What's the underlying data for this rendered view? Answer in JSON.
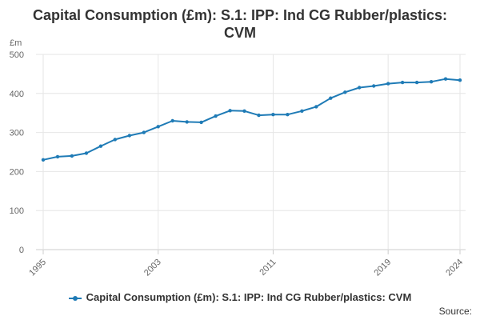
{
  "chart_data": {
    "type": "line",
    "title": "Capital Consumption (£m): S.1: IPP: Ind CG Rubber/plastics: CVM",
    "title_lines": [
      "Capital Consumption (£m): S.1: IPP: Ind CG Rubber/plastics:",
      "CVM"
    ],
    "ylabel": "£m",
    "xlabel": "",
    "ylim": [
      0,
      500
    ],
    "yticks": [
      0,
      100,
      200,
      300,
      400,
      500
    ],
    "xlim": [
      1995,
      2024
    ],
    "xticks": [
      "1995",
      "2003",
      "2011",
      "2019",
      "2024"
    ],
    "grid": true,
    "legend_position": "bottom",
    "series": [
      {
        "name": "Capital Consumption (£m): S.1: IPP: Ind CG Rubber/plastics: CVM",
        "color": "#1f7bb6",
        "x": [
          1995,
          1996,
          1997,
          1998,
          1999,
          2000,
          2001,
          2002,
          2003,
          2004,
          2005,
          2006,
          2007,
          2008,
          2009,
          2010,
          2011,
          2012,
          2013,
          2014,
          2015,
          2016,
          2017,
          2018,
          2019,
          2020,
          2021,
          2022,
          2023,
          2024
        ],
        "values": [
          230,
          238,
          240,
          247,
          265,
          282,
          292,
          300,
          315,
          330,
          327,
          326,
          342,
          356,
          355,
          344,
          346,
          346,
          355,
          366,
          388,
          403,
          415,
          419,
          425,
          428,
          428,
          430,
          437,
          434
        ]
      }
    ]
  },
  "source_label": "Source:"
}
